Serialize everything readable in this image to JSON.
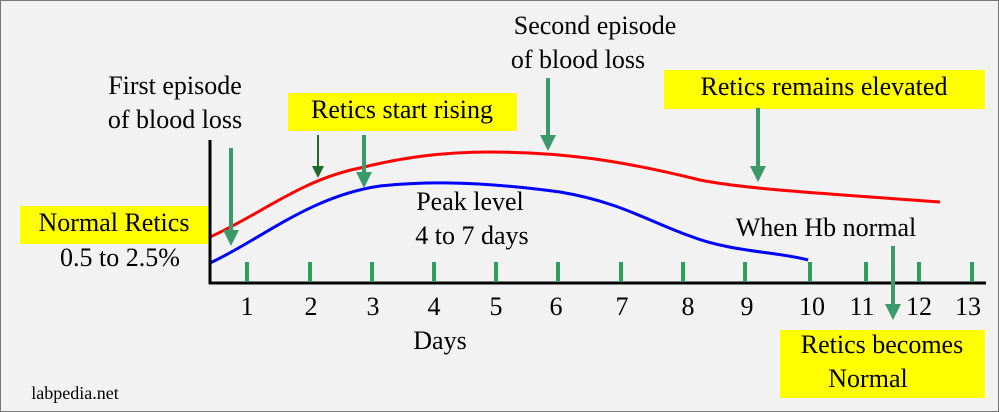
{
  "annotations": {
    "first_episode": [
      "First episode",
      "of blood loss"
    ],
    "second_episode": [
      "Second episode",
      "of blood loss"
    ],
    "retics_start_rising": "Retics start rising",
    "retics_remains_elevated": "Retics remains elevated",
    "normal_retics": "Normal Retics",
    "normal_range": "0.5 to 2.5%",
    "peak_level": [
      "Peak level",
      "4 to 7 days"
    ],
    "when_hb_normal": "When Hb normal",
    "retics_becomes_normal": [
      "Retics becomes",
      "Normal"
    ]
  },
  "x_axis": {
    "label": "Days",
    "ticks": [
      "1",
      "2",
      "3",
      "4",
      "5",
      "6",
      "7",
      "8",
      "9",
      "10",
      "11",
      "12",
      "13"
    ]
  },
  "footer": {
    "source": "labpedia.net"
  }
}
